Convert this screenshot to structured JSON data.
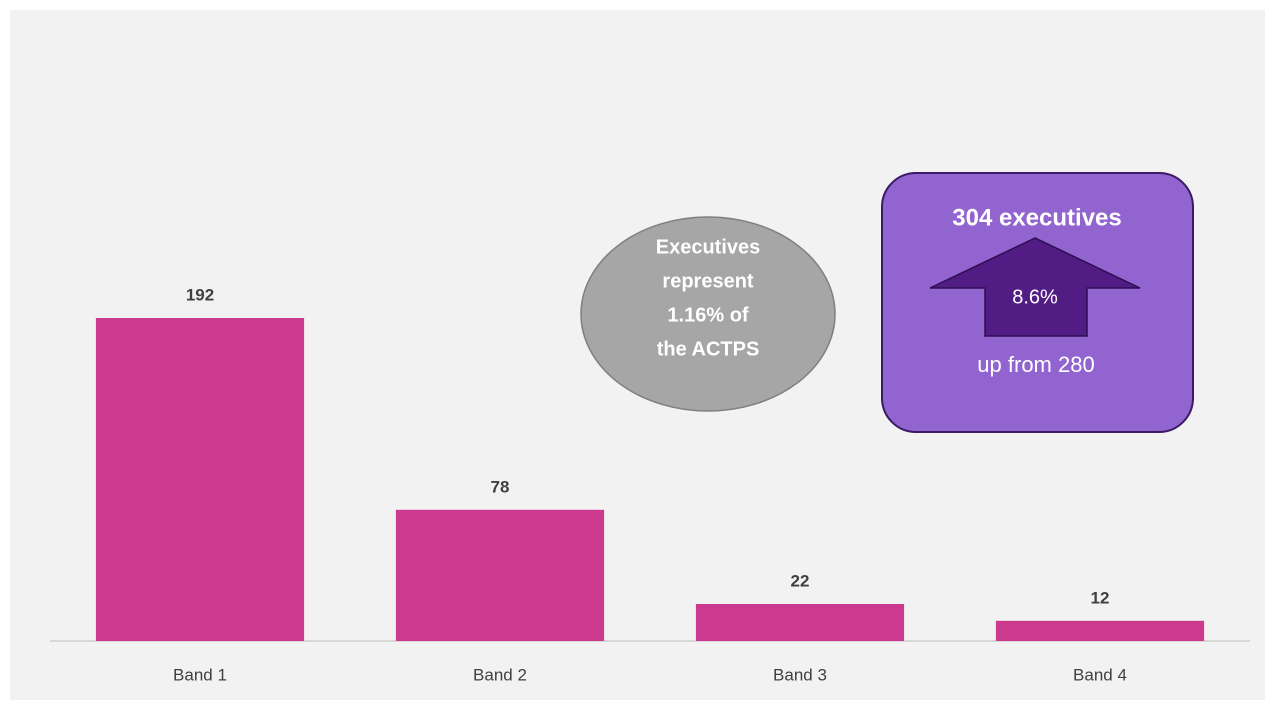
{
  "chart_data": {
    "type": "bar",
    "categories": [
      "Band 1",
      "Band 2",
      "Band 3",
      "Band 4"
    ],
    "values": [
      192,
      78,
      22,
      12
    ],
    "color": "#cc3a90",
    "annotations": {
      "circle_lines": [
        "Executives",
        "represent",
        "1.16% of",
        "the ACTPS"
      ],
      "box_title": "304 executives",
      "arrow_text": "8.6%",
      "box_subtitle": "up from 280"
    }
  }
}
